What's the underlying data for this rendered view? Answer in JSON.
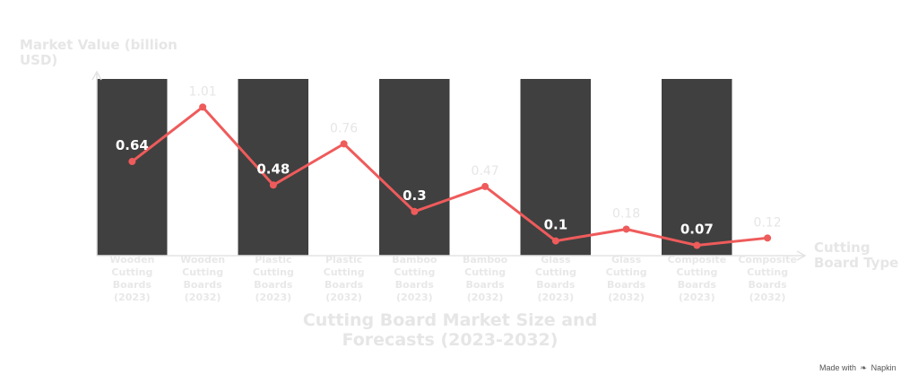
{
  "chart_data": {
    "type": "bar",
    "title": "Cutting Board Market Size and Forecasts (2023-2032)",
    "ylabel": "Market Value (billion USD)",
    "xlabel": "Cutting Board Type",
    "categories": [
      [
        "Wooden",
        "Cutting",
        "Boards",
        "(2023)"
      ],
      [
        "Wooden",
        "Cutting",
        "Boards",
        "(2032)"
      ],
      [
        "Plastic",
        "Cutting",
        "Boards",
        "(2023)"
      ],
      [
        "Plastic",
        "Cutting",
        "Boards",
        "(2032)"
      ],
      [
        "Bamboo",
        "Cutting",
        "Boards",
        "(2023)"
      ],
      [
        "Bamboo",
        "Cutting",
        "Boards",
        "(2032)"
      ],
      [
        "Glass",
        "Cutting",
        "Boards",
        "(2023)"
      ],
      [
        "Glass",
        "Cutting",
        "Boards",
        "(2032)"
      ],
      [
        "Composite",
        "Cutting",
        "Boards",
        "(2023)"
      ],
      [
        "Composite",
        "Cutting",
        "Boards",
        "(2032)"
      ]
    ],
    "values": [
      0.64,
      1.01,
      0.48,
      0.76,
      0.3,
      0.47,
      0.1,
      0.18,
      0.07,
      0.12
    ],
    "value_labels": [
      "0.64",
      "1.01",
      "0.48",
      "0.76",
      "0.3",
      "0.47",
      "0.1",
      "0.18",
      "0.07",
      "0.12"
    ],
    "bar_style": "full-height alternating dark columns behind the line",
    "ylim": [
      0,
      1.25
    ],
    "grid": false,
    "colors": {
      "bar": "#404040",
      "line": "#ef5b5b",
      "label_on_bar": "#ffffff",
      "label_off_bar": "#e6e6e6",
      "axis": "#e3e3e3"
    }
  },
  "watermark": {
    "text_before": "Made with",
    "icon": "napkin-logo-icon",
    "text_after": "Napkin"
  }
}
